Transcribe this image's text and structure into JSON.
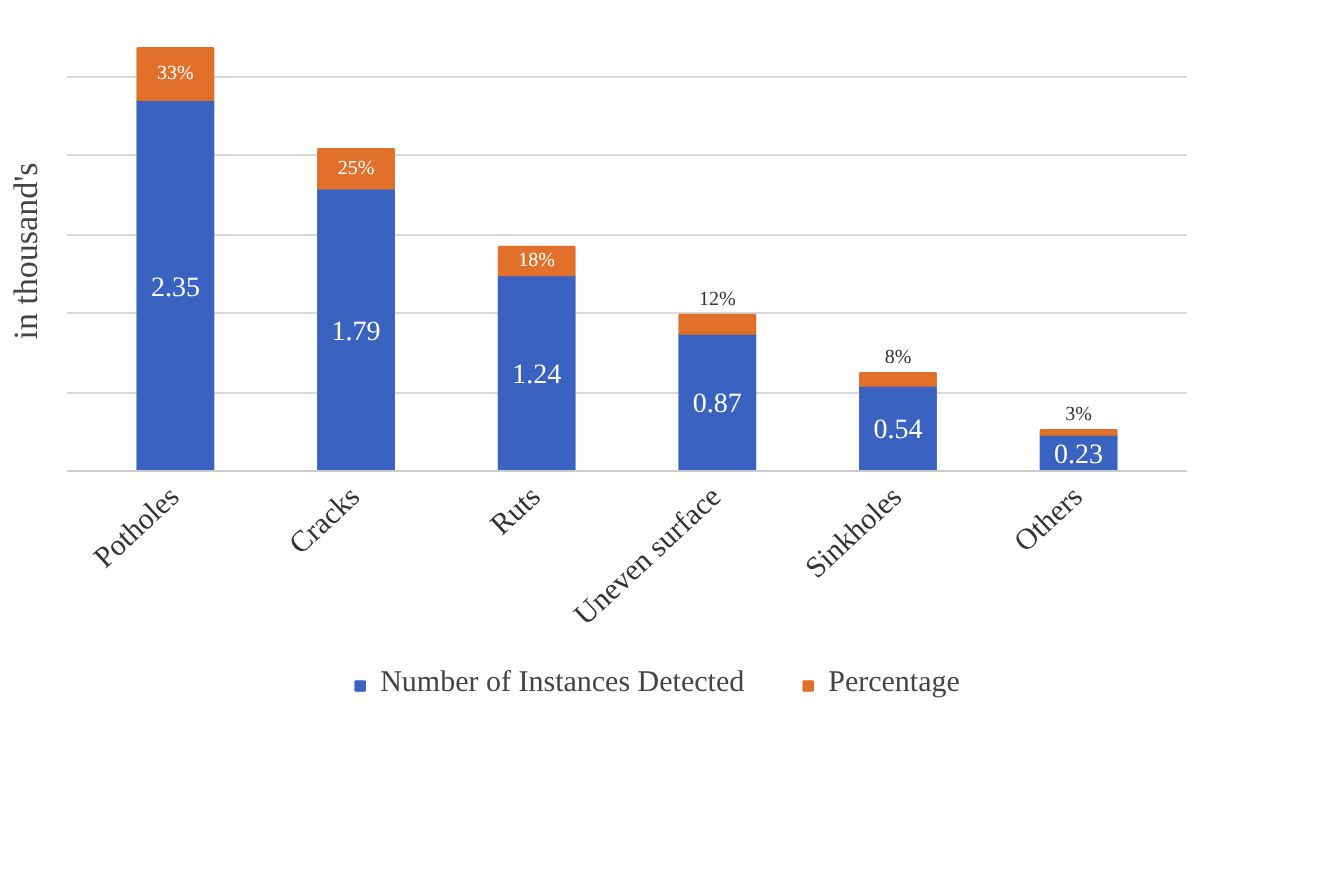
{
  "chart_data": {
    "type": "bar",
    "stacked": true,
    "ylabel": "in thousand's",
    "categories": [
      "Potholes",
      "Cracks",
      "Ruts",
      "Uneven surface",
      "Sinkholes",
      "Others"
    ],
    "series": [
      {
        "name": "Number of Instances Detected",
        "color": "#3a62c0",
        "values": [
          2.35,
          1.79,
          1.24,
          0.87,
          0.54,
          0.23
        ],
        "value_labels": [
          "2.35",
          "1.79",
          "1.24",
          "0.87",
          "0.54",
          "0.23"
        ]
      },
      {
        "name": "Percentage",
        "color": "#e0702a",
        "values": [
          0.33,
          0.25,
          0.18,
          0.12,
          0.08,
          0.03
        ],
        "value_labels": [
          "33%",
          "25%",
          "18%",
          "12%",
          "8%",
          "3%"
        ]
      }
    ],
    "yticks": [
      {
        "value": 0,
        "label": null
      },
      {
        "value": 0.5,
        "label": null
      },
      {
        "value": 1,
        "label": null
      },
      {
        "value": 1.5,
        "label": null
      },
      {
        "value": 2,
        "label": null
      },
      {
        "value": 2.5,
        "label": null
      }
    ],
    "grid": "y",
    "tick_labels": "x",
    "legend": "bottom"
  }
}
